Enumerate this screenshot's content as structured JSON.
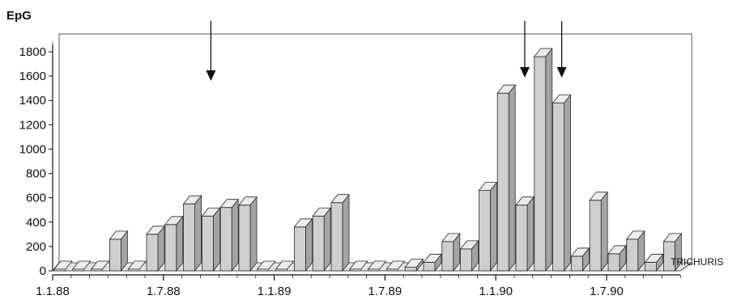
{
  "chart_data": {
    "type": "bar",
    "ylabel": "EpG",
    "series_label": "TRICHURIS",
    "y_ticks": [
      0,
      200,
      400,
      600,
      800,
      1000,
      1200,
      1400,
      1600,
      1800
    ],
    "ylim": [
      0,
      1800
    ],
    "x_tick_labels": [
      "1.1.88",
      "1.7.88",
      "1.1.89",
      "1.7.89",
      "1.1.90",
      "1.7.90"
    ],
    "x_tick_bar_index": [
      0,
      6,
      12,
      18,
      24,
      30
    ],
    "values": [
      0,
      0,
      0,
      260,
      0,
      300,
      380,
      550,
      450,
      520,
      540,
      0,
      0,
      360,
      450,
      560,
      0,
      0,
      0,
      30,
      70,
      240,
      180,
      660,
      1460,
      540,
      1760,
      1380,
      120,
      580,
      140,
      260,
      70,
      240
    ],
    "arrow_bar_index": [
      8,
      25,
      27
    ],
    "grid": false,
    "legend": "none",
    "colors": {
      "bar_front": "#cfcfcf",
      "bar_top": "#ececec",
      "bar_side": "#a4a4a4",
      "stroke": "#2a2a2a",
      "floor": "#e4e4e4"
    }
  }
}
